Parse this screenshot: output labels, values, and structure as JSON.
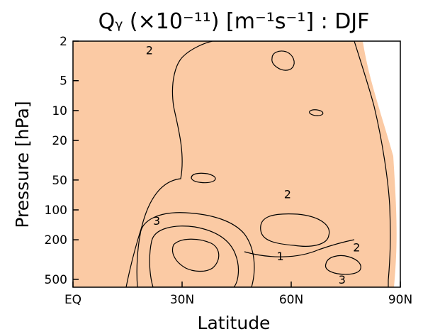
{
  "chart_data": {
    "type": "contour",
    "title": "Qᵧ (×10⁻¹¹) [m⁻¹s⁻¹] : DJF",
    "xlabel": "Latitude",
    "ylabel": "Pressure [hPa]",
    "x_ticks": [
      {
        "value": 0,
        "label": "EQ"
      },
      {
        "value": 30,
        "label": "30N"
      },
      {
        "value": 60,
        "label": "60N"
      },
      {
        "value": 90,
        "label": "90N"
      }
    ],
    "y_ticks": [
      {
        "value": 2,
        "label": "2"
      },
      {
        "value": 5,
        "label": "5"
      },
      {
        "value": 10,
        "label": "10"
      },
      {
        "value": 20,
        "label": "20"
      },
      {
        "value": 50,
        "label": "50"
      },
      {
        "value": 100,
        "label": "100"
      },
      {
        "value": 200,
        "label": "200"
      },
      {
        "value": 500,
        "label": "500"
      }
    ],
    "x_range": [
      0,
      90
    ],
    "y_range": [
      2,
      600
    ],
    "y_scale": "log-reversed",
    "contour_levels": [
      1,
      2,
      3,
      4
    ],
    "fill_colors": {
      "lt1": "#ffffff",
      "1to2": "#fde6d3",
      "2to3": "#fbcaa4",
      "3to4": "#f8a860",
      "gt4": "#f37f16"
    },
    "contour_labels": [
      {
        "text": "2",
        "lat": 21,
        "p": 2.5
      },
      {
        "text": "2",
        "lat": 59,
        "p": 70
      },
      {
        "text": "3",
        "lat": 23,
        "p": 130
      },
      {
        "text": "1",
        "lat": 57,
        "p": 295
      },
      {
        "text": "2",
        "lat": 78,
        "p": 240
      },
      {
        "text": "3",
        "lat": 74,
        "p": 510
      }
    ]
  }
}
